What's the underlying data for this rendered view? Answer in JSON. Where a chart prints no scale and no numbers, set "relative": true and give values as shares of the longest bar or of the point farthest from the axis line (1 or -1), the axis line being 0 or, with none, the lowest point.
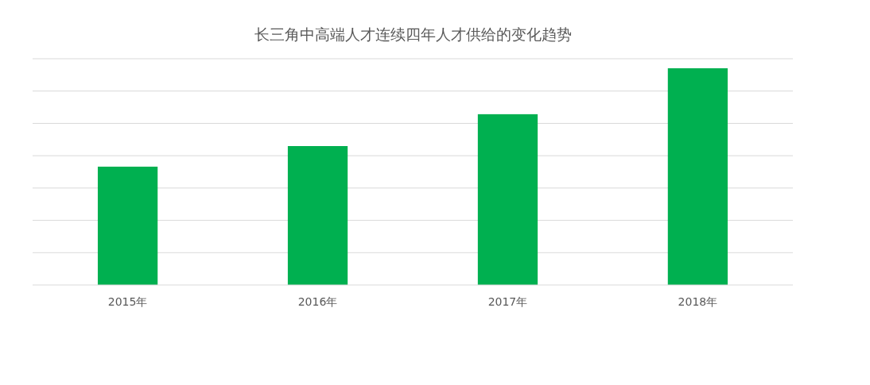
{
  "chart_data": {
    "type": "bar",
    "title": "长三角中高端人才连续四年人才供给的变化趋势",
    "categories": [
      "2015年",
      "2016年",
      "2017年",
      "2018年"
    ],
    "values": [
      0.546,
      0.641,
      0.788,
      1
    ],
    "color": "#00b050",
    "relative": true,
    "grid": "y"
  }
}
